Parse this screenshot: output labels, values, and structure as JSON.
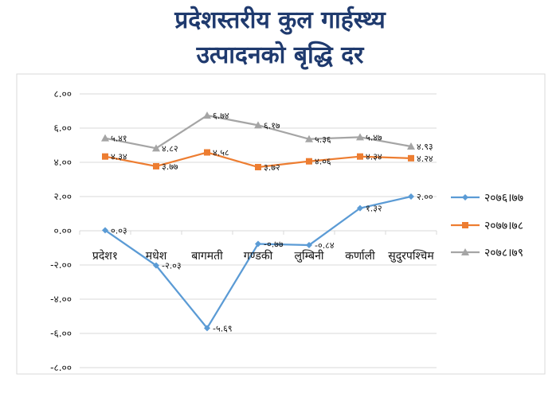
{
  "title_line1": "प्रदेशस्तरीय कुल गार्हस्थ्य",
  "title_line2": "उत्पादनको बृद्धि दर",
  "chart_data": {
    "type": "line",
    "categories": [
      "प्रदेश१",
      "मधेश",
      "बागमती",
      "गण्डकी",
      "लुम्बिनी",
      "कर्णाली",
      "सुदुरपश्चिम"
    ],
    "ylim": [
      -8,
      8
    ],
    "yticks": [
      -8,
      -6,
      -4,
      -2,
      0,
      2,
      4,
      6,
      8
    ],
    "ytick_labels": [
      "-८.००",
      "-६.००",
      "-४.००",
      "-२.००",
      "०.००",
      "२.००",
      "४.००",
      "६.००",
      "८.००"
    ],
    "grid": true,
    "legend_position": "right",
    "series": [
      {
        "name": "२०७६।७७",
        "color": "#5b9bd5",
        "marker": "diamond",
        "values": [
          0.03,
          -2.03,
          -5.69,
          -0.77,
          -0.84,
          1.32,
          2.0
        ],
        "labels": [
          "०.०३",
          "-२.०३",
          "-५.६९",
          "-०.७७",
          "-०.८४",
          "१.३२",
          "२.००"
        ]
      },
      {
        "name": "२०७७।७८",
        "color": "#ed7d31",
        "marker": "square",
        "values": [
          4.34,
          3.77,
          4.58,
          3.72,
          4.06,
          4.34,
          4.24
        ],
        "labels": [
          "४.३४",
          "३.७७",
          "४.५८",
          "३.७२",
          "४.०६",
          "४.३४",
          "४.२४"
        ]
      },
      {
        "name": "२०७८।७९",
        "color": "#a5a5a5",
        "marker": "triangle",
        "values": [
          5.41,
          4.82,
          6.74,
          6.17,
          5.36,
          5.47,
          4.93
        ],
        "labels": [
          "५.४१",
          "४.८२",
          "६.७४",
          "६.१७",
          "५.३६",
          "५.४७",
          "४.९३"
        ]
      }
    ]
  }
}
